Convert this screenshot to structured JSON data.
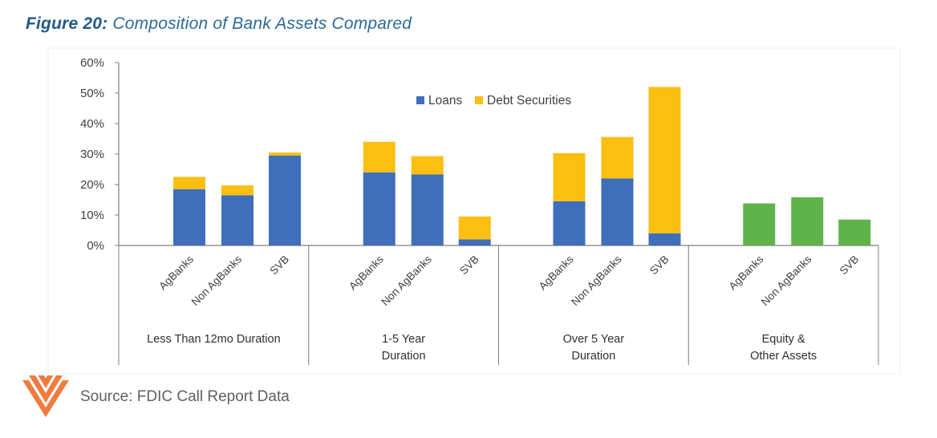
{
  "figure": {
    "label": "Figure 20:",
    "title": "Composition of Bank Assets Compared"
  },
  "source": "Source: FDIC Call Report Data",
  "colors": {
    "loans": "#3f6fba",
    "debt_securities": "#fbbf12",
    "equity": "#5fb34a",
    "axis": "#7f7f7f",
    "title": "#1f5a8a"
  },
  "chart_data": {
    "type": "bar",
    "stacked": true,
    "ylim": [
      0,
      60
    ],
    "yticks": [
      0,
      10,
      20,
      30,
      40,
      50,
      60
    ],
    "ytick_labels": [
      "0%",
      "10%",
      "20%",
      "30%",
      "40%",
      "50%",
      "60%"
    ],
    "legend": {
      "position": "top-center",
      "entries": [
        "Loans",
        "Debt Securities"
      ]
    },
    "groups": [
      {
        "label_lines": [
          "Less Than 12mo Duration"
        ],
        "categories": [
          "AgBanks",
          "Non AgBanks",
          "SVB"
        ]
      },
      {
        "label_lines": [
          "1-5 Year",
          "Duration"
        ],
        "categories": [
          "AgBanks",
          "Non AgBanks",
          "SVB"
        ]
      },
      {
        "label_lines": [
          "Over 5 Year",
          "Duration"
        ],
        "categories": [
          "AgBanks",
          "Non AgBanks",
          "SVB"
        ]
      },
      {
        "label_lines": [
          "Equity &",
          "Other Assets"
        ],
        "categories": [
          "AgBanks",
          "Non AgBanks",
          "SVB"
        ]
      }
    ],
    "series": [
      {
        "name": "Loans",
        "color": "#3f6fba",
        "values": [
          [
            18.5,
            16.5,
            29.5
          ],
          [
            24,
            23.3,
            2
          ],
          [
            14.5,
            22,
            4
          ],
          [
            null,
            null,
            null
          ]
        ]
      },
      {
        "name": "Debt Securities",
        "color": "#fbbf12",
        "values": [
          [
            4,
            3.2,
            1
          ],
          [
            10,
            6,
            7.5
          ],
          [
            15.8,
            13.6,
            48
          ],
          [
            null,
            null,
            null
          ]
        ]
      },
      {
        "name": "",
        "color": "#5fb34a",
        "values": [
          [
            null,
            null,
            null
          ],
          [
            null,
            null,
            null
          ],
          [
            null,
            null,
            null
          ],
          [
            13.8,
            15.8,
            8.5
          ]
        ]
      }
    ]
  }
}
